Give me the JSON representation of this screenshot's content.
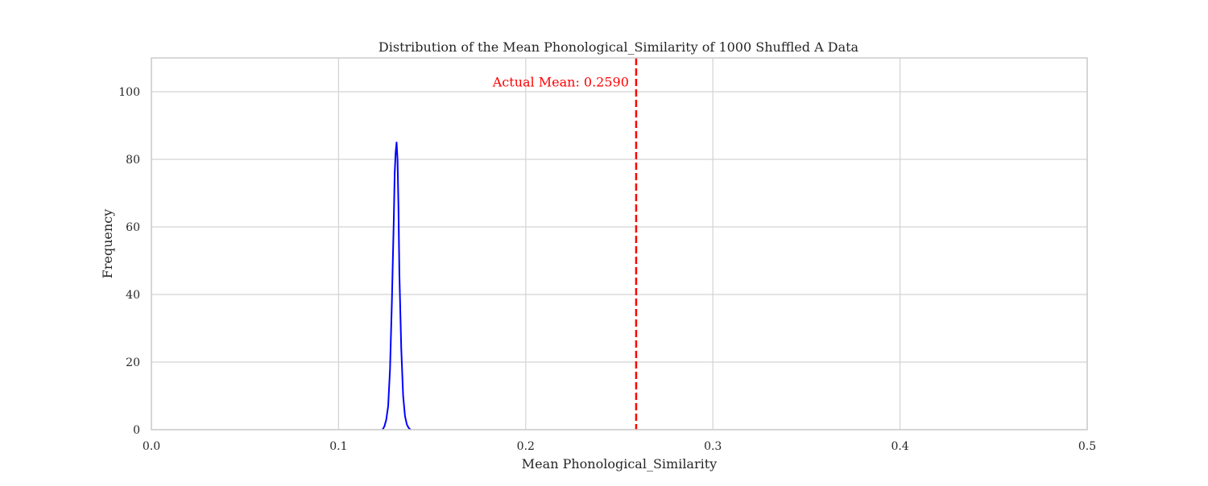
{
  "chart_data": {
    "type": "line",
    "title": "Distribution of the Mean Phonological_Similarity of 1000 Shuffled A Data",
    "xlabel": "Mean Phonological_Similarity",
    "ylabel": "Frequency",
    "xlim": [
      0.0,
      0.5
    ],
    "ylim": [
      0,
      110
    ],
    "xticks": [
      0.0,
      0.1,
      0.2,
      0.3,
      0.4,
      0.5
    ],
    "xtick_labels": [
      "0.0",
      "0.1",
      "0.2",
      "0.3",
      "0.4",
      "0.5"
    ],
    "yticks": [
      0,
      20,
      40,
      60,
      80,
      100
    ],
    "ytick_labels": [
      "0",
      "20",
      "40",
      "60",
      "80",
      "100"
    ],
    "grid": true,
    "series": [
      {
        "color": "#0000ff",
        "x": [
          0.1235,
          0.1245,
          0.1255,
          0.1265,
          0.1275,
          0.1285,
          0.1295,
          0.13,
          0.1305,
          0.131,
          0.1315,
          0.132,
          0.1325,
          0.1335,
          0.1345,
          0.1355,
          0.1365,
          0.1375,
          0.1385
        ],
        "y": [
          0,
          1,
          3,
          7,
          18,
          38,
          62,
          76,
          82,
          85,
          80,
          66,
          46,
          24,
          10,
          4,
          1.5,
          0.5,
          0
        ]
      }
    ],
    "vline": {
      "x": 0.259,
      "color": "#ff0000",
      "style": "dashed",
      "label": "Actual Mean: 0.2590"
    }
  }
}
